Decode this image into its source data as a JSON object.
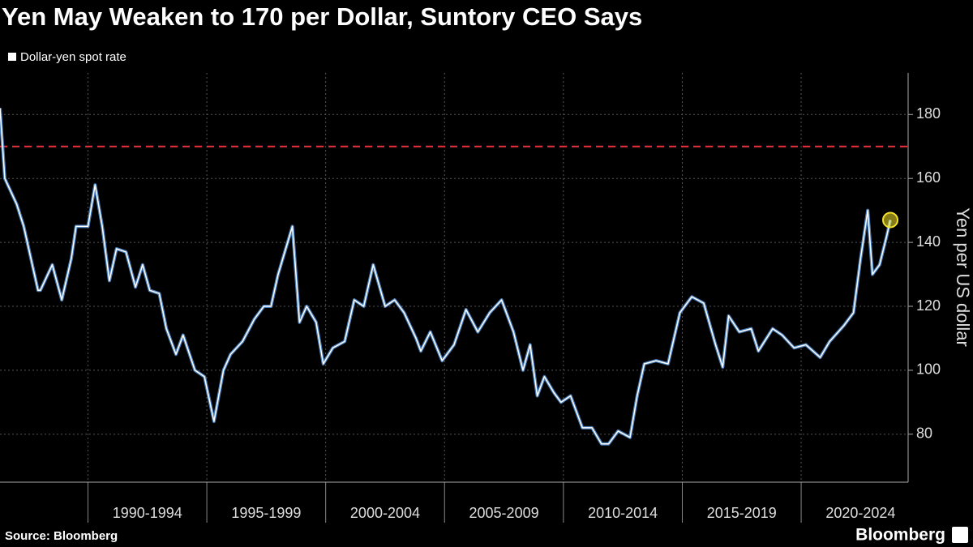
{
  "chart_data": {
    "type": "line",
    "title": "Yen May Weaken to 170 per Dollar, Suntory CEO Says",
    "y_axis_label": "Yen per US dollar",
    "source": "Source: Bloomberg",
    "brand": "Bloomberg",
    "x": [
      1986.3,
      1986.5,
      1987.0,
      1987.3,
      1987.9,
      1988.0,
      1988.5,
      1988.9,
      1989.3,
      1989.5,
      1990.0,
      1990.3,
      1990.6,
      1990.9,
      1991.2,
      1991.6,
      1992.0,
      1992.3,
      1992.6,
      1993.0,
      1993.3,
      1993.7,
      1994.0,
      1994.5,
      1994.9,
      1995.3,
      1995.7,
      1996.0,
      1996.5,
      1997.0,
      1997.4,
      1997.7,
      1998.0,
      1998.6,
      1998.9,
      1999.2,
      1999.6,
      1999.9,
      2000.3,
      2000.8,
      2001.2,
      2001.6,
      2002.0,
      2002.5,
      2002.9,
      2003.3,
      2003.8,
      2004.0,
      2004.4,
      2004.9,
      2005.4,
      2005.9,
      2006.4,
      2006.9,
      2007.4,
      2007.9,
      2008.3,
      2008.6,
      2008.9,
      2009.2,
      2009.6,
      2009.9,
      2010.3,
      2010.8,
      2011.2,
      2011.6,
      2011.9,
      2012.3,
      2012.8,
      2013.1,
      2013.4,
      2013.9,
      2014.4,
      2014.9,
      2015.4,
      2015.9,
      2016.4,
      2016.7,
      2016.95,
      2017.4,
      2017.9,
      2018.2,
      2018.8,
      2019.2,
      2019.7,
      2020.2,
      2020.8,
      2021.2,
      2021.8,
      2022.2,
      2022.5,
      2022.8,
      2023.0,
      2023.3,
      2023.6,
      2023.75
    ],
    "series": [
      {
        "name": "Dollar-yen spot rate",
        "color": "#ffffff",
        "values": [
          182,
          160,
          152,
          145,
          125,
          125,
          133,
          122,
          135,
          145,
          145,
          158,
          145,
          128,
          138,
          137,
          126,
          133,
          125,
          124,
          113,
          105,
          111,
          100,
          98,
          84,
          100,
          105,
          109,
          116,
          120,
          120,
          130,
          145,
          115,
          120,
          115,
          102,
          107,
          109,
          122,
          120,
          133,
          120,
          122,
          118,
          110,
          106,
          112,
          103,
          108,
          119,
          112,
          118,
          122,
          112,
          100,
          108,
          92,
          98,
          93,
          90,
          92,
          82,
          82,
          77,
          77,
          81,
          79,
          92,
          102,
          103,
          102,
          118,
          123,
          121,
          108,
          101,
          117,
          112,
          113,
          106,
          113,
          111,
          107,
          108,
          104,
          109,
          114,
          118,
          135,
          150,
          130,
          133,
          142,
          147
        ]
      }
    ],
    "xlim": [
      1986.3,
      2024.5
    ],
    "xticks": [
      {
        "value": 1990,
        "label": "1990-1994"
      },
      {
        "value": 1995,
        "label": "1995-1999"
      },
      {
        "value": 2000,
        "label": "2000-2004"
      },
      {
        "value": 2005,
        "label": "2005-2009"
      },
      {
        "value": 2010,
        "label": "2010-2014"
      },
      {
        "value": 2015,
        "label": "2015-2019"
      },
      {
        "value": 2020,
        "label": "2020-2024"
      }
    ],
    "ylim": [
      65,
      193
    ],
    "yticks": [
      80,
      100,
      120,
      140,
      160,
      180
    ],
    "grid": true,
    "reference_line": {
      "value": 170,
      "color": "#e8323c"
    },
    "highlight_color": "#f2e12b"
  }
}
